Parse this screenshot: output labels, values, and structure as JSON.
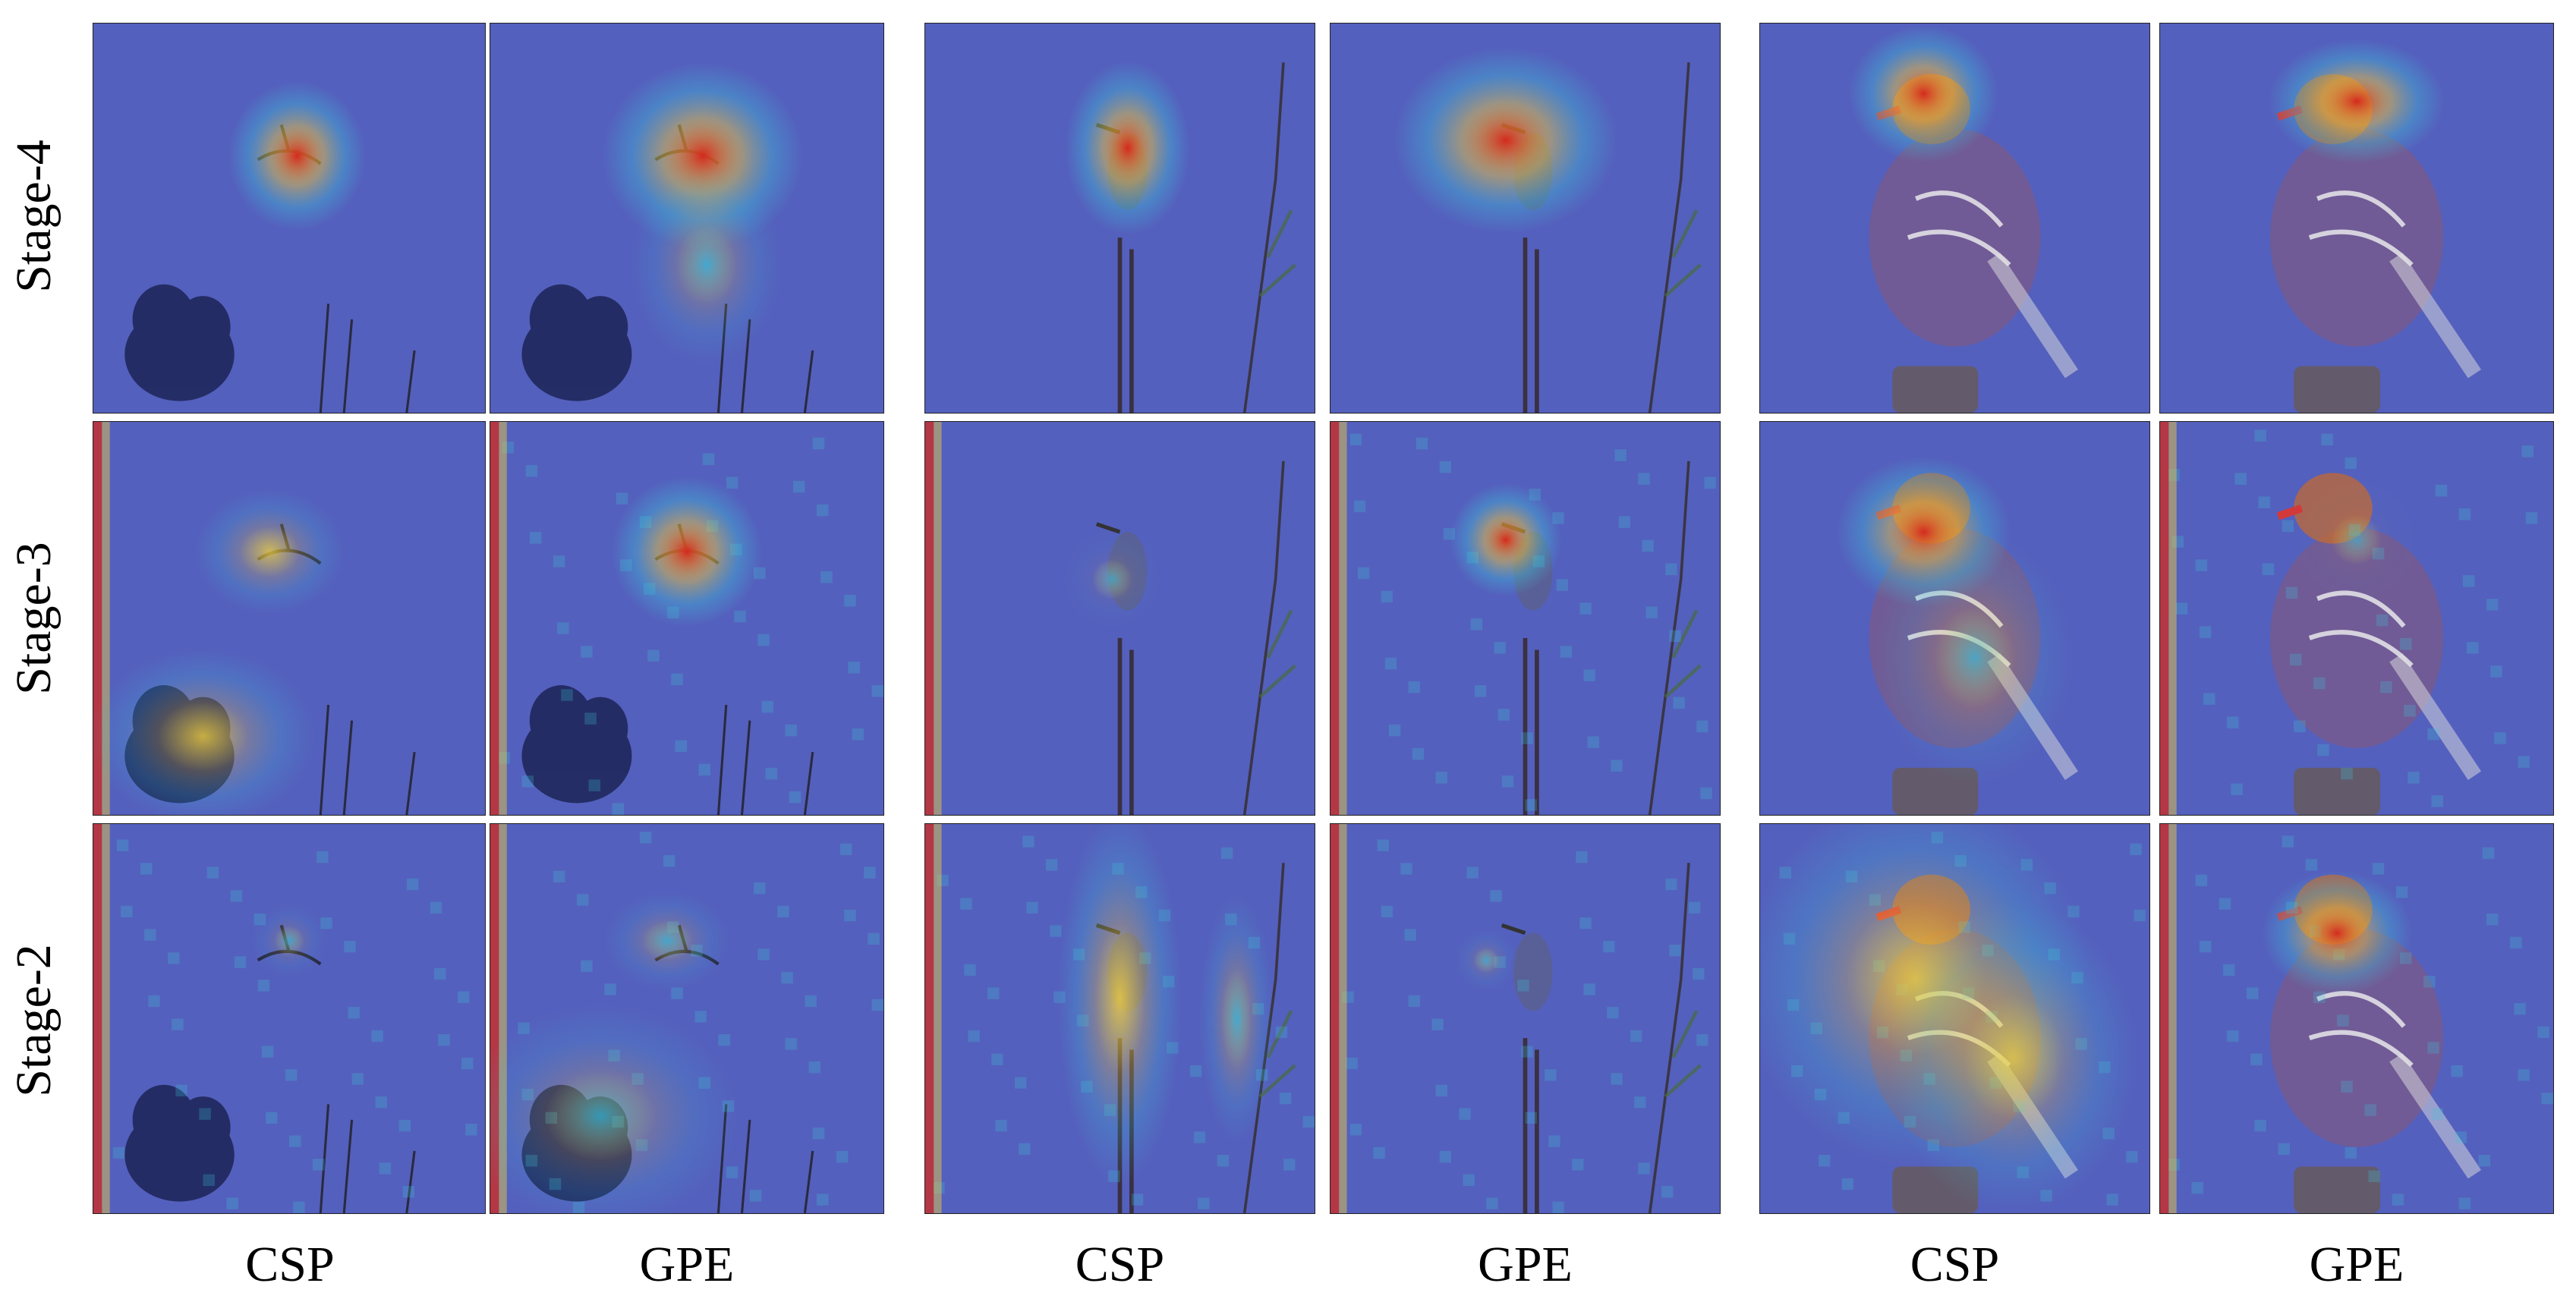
{
  "row_labels": [
    "Stage-4",
    "Stage-3",
    "Stage-2"
  ],
  "column_labels": [
    "CSP",
    "GPE",
    "CSP",
    "GPE",
    "CSP",
    "GPE"
  ],
  "scenes": [
    "flying-bird",
    "heron",
    "mandarin-duck"
  ],
  "methods": [
    "CSP",
    "GPE"
  ],
  "stages": [
    "Stage-4",
    "Stage-3",
    "Stage-2"
  ],
  "colors": {
    "overlay_base": "#4b55b8",
    "heat_hot": "#d42a1e",
    "heat_warm": "#f5d23a",
    "heat_cool": "#3cc4d8",
    "background": "#ffffff"
  }
}
